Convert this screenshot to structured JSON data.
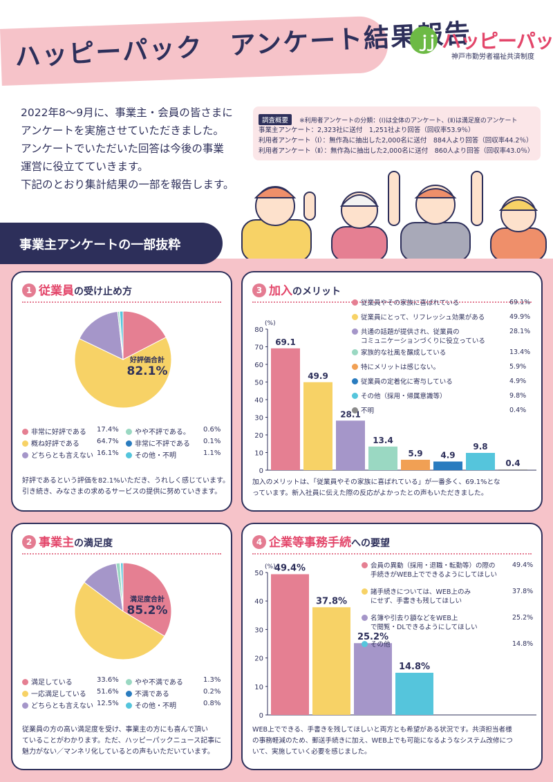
{
  "header": {
    "title": "ハッピーパック　アンケート結果報告",
    "logo_name": "ハッピーパック",
    "logo_sub": "神戸市勤労者福祉共済制度"
  },
  "intro": {
    "lines": [
      "2022年8～9月に、事業主・会員の皆さまに",
      "アンケートを実施させていただきました。",
      "アンケートでいただいた回答は今後の事業",
      "運営に役立てていきます。",
      "下記のとおり集計結果の一部を報告します。"
    ]
  },
  "survey": {
    "tag": "調査概要",
    "note": "※利用者アンケートの分類：(Ⅰ)は全体のアンケート、(Ⅱ)は満足度のアンケート",
    "lines": [
      "事業主アンケート：2,323社に送付　1,251社より回答（回収率53.9％）",
      "利用者アンケート（Ⅰ）：無作為に抽出した2,000名に送付　884人より回答（回収率44.2％）",
      "利用者アンケート（Ⅱ）：無作為に抽出した2,000名に送付　860人より回答（回収率43.0％）"
    ]
  },
  "section": {
    "title": "事業主アンケートの一部抜粋"
  },
  "colors": {
    "pink": "#e57f92",
    "yellow": "#f7d266",
    "purple": "#a596c9",
    "mint": "#9ad8c2",
    "orange": "#f1a054",
    "blue": "#2a7cbf",
    "cyan": "#55c5dc",
    "gray": "#8a8a8a",
    "navy": "#2d2f5a"
  },
  "panel1": {
    "num": "1",
    "key": "従業員",
    "rest": "の受け止め方",
    "center_small": "好評価合計",
    "center_big": "82.1%",
    "legend": [
      {
        "label": "非常に好評である",
        "value": "17.4%"
      },
      {
        "label": "概ね好評である",
        "value": "64.7%"
      },
      {
        "label": "どちらとも言えない",
        "value": "16.1%"
      },
      {
        "label": "やや不評である。",
        "value": "0.6%"
      },
      {
        "label": "非常に不評である",
        "value": "0.1%"
      },
      {
        "label": "その他・不明",
        "value": "1.1%"
      }
    ],
    "comment": [
      "好評であるという評価を82.1%いただき、うれしく感じています。",
      "引き続き、みなさまの求めるサービスの提供に努めていきます。"
    ]
  },
  "panel2": {
    "num": "2",
    "key": "事業主",
    "rest": "の満足度",
    "center_small": "満足度合計",
    "center_big": "85.2%",
    "legend": [
      {
        "label": "満足している",
        "value": "33.6%"
      },
      {
        "label": "一応満足している",
        "value": "51.6%"
      },
      {
        "label": "どちらとも言えない",
        "value": "12.5%"
      },
      {
        "label": "やや不満である",
        "value": "1.3%"
      },
      {
        "label": "不満である",
        "value": "0.2%"
      },
      {
        "label": "その他・不明",
        "value": "0.8%"
      }
    ],
    "comment": [
      "従業員の方の高い満足度を受け、事業主の方にも喜んで頂い",
      "ていることがわかります。ただ、ハッピーパックニュース記事に",
      "魅力がない／マンネリ化しているとの声もいただいています。"
    ]
  },
  "panel3": {
    "num": "3",
    "key": "加入",
    "rest": "のメリット",
    "unit": "(%)",
    "comment": [
      "加入のメリットは、「従業員やその家族に喜ばれている」が一番多く、69.1%とな",
      "っています。新入社員に伝えた際の反応がよかったとの声もいただきました。"
    ],
    "legend": [
      {
        "label": "従業員やその家族に喜ばれている",
        "value": "69.1%"
      },
      {
        "label": "従業員にとって、リフレッシュ効果がある",
        "value": "49.9%"
      },
      {
        "label": "共通の話題が提供され、従業員の",
        "label2": "コミュニケーションづくりに役立っている",
        "value": "28.1%"
      },
      {
        "label": "家族的な社風を醸成している",
        "value": "13.4%"
      },
      {
        "label": "特にメリットは感じない。",
        "value": "5.9%"
      },
      {
        "label": "従業員の定着化に寄与している",
        "value": "4.9%"
      },
      {
        "label": "その他（採用・帰属意識等）",
        "value": "9.8%"
      },
      {
        "label": "不明",
        "value": "0.4%"
      }
    ]
  },
  "panel4": {
    "num": "4",
    "key": "企業等事務手続",
    "rest": "への要望",
    "unit": "(%)",
    "comment": [
      "WEB上でできる、手書きを残してほしいと両方とも希望がある状況です。共済担当者様",
      "の事務軽減のため、郵送手続きに加え、WEB上でも可能になるようなシステム改修につ",
      "いて、実施していく必要を感じました。"
    ],
    "legend": [
      {
        "label": "会員の異動（採用・退職・転勤等）の際の",
        "label2": "手続きがWEB上でできるようにしてほしい",
        "value": "49.4%"
      },
      {
        "label": "諸手続きについては、WEB上のみ",
        "label2": "にせず、手書きも残してほしい",
        "value": "37.8%"
      },
      {
        "label": "名簿や引去り額などをWEB上",
        "label2": "で閲覧・DLできるようにしてほしい",
        "value": "25.2%"
      },
      {
        "label": "その他",
        "value": "14.8%"
      }
    ]
  },
  "chart_data": [
    {
      "type": "pie",
      "categories": [
        "非常に好評である",
        "概ね好評である",
        "どちらとも言えない",
        "やや不評である。",
        "非常に不評である",
        "その他・不明"
      ],
      "values": [
        17.4,
        64.7,
        16.1,
        0.6,
        0.1,
        1.1
      ],
      "title": "従業員の受け止め方"
    },
    {
      "type": "pie",
      "categories": [
        "満足している",
        "一応満足している",
        "どちらとも言えない",
        "やや不満である",
        "不満である",
        "その他・不明"
      ],
      "values": [
        33.6,
        51.6,
        12.5,
        1.3,
        0.2,
        0.8
      ],
      "title": "事業主の満足度"
    },
    {
      "type": "bar",
      "categories": [
        "従業員やその家族に喜ばれている",
        "従業員にとって、リフレッシュ効果がある",
        "共通の話題が提供され、従業員のコミュニケーションづくりに役立っている",
        "家族的な社風を醸成している",
        "特にメリットは感じない。",
        "従業員の定着化に寄与している",
        "その他（採用・帰属意識等）",
        "不明"
      ],
      "values": [
        69.1,
        49.9,
        28.1,
        13.4,
        5.9,
        4.9,
        9.8,
        0.4
      ],
      "value_labels": [
        "69.1",
        "49.9",
        "28.1",
        "13.4",
        "5.9",
        "4.9",
        "9.8",
        "0.4"
      ],
      "title": "加入のメリット",
      "ylabel": "(%)",
      "ylim": [
        0,
        80
      ],
      "yticks": [
        0,
        10,
        20,
        30,
        40,
        50,
        60,
        70,
        80
      ]
    },
    {
      "type": "bar",
      "categories": [
        "会員の異動（採用・退職・転勤等）の際の手続きがWEB上でできるようにしてほしい",
        "諸手続きについては、WEB上のみにせず、手書きも残してほしい",
        "名簿や引去り額などをWEB上で閲覧・DLできるようにしてほしい",
        "その他"
      ],
      "values": [
        49.4,
        37.8,
        25.2,
        14.8
      ],
      "value_labels": [
        "49.4%",
        "37.8%",
        "25.2%",
        "14.8%"
      ],
      "title": "企業等事務手続への要望",
      "ylabel": "(%)",
      "ylim": [
        0,
        50
      ],
      "yticks": [
        0,
        10,
        20,
        30,
        40,
        50
      ]
    }
  ]
}
